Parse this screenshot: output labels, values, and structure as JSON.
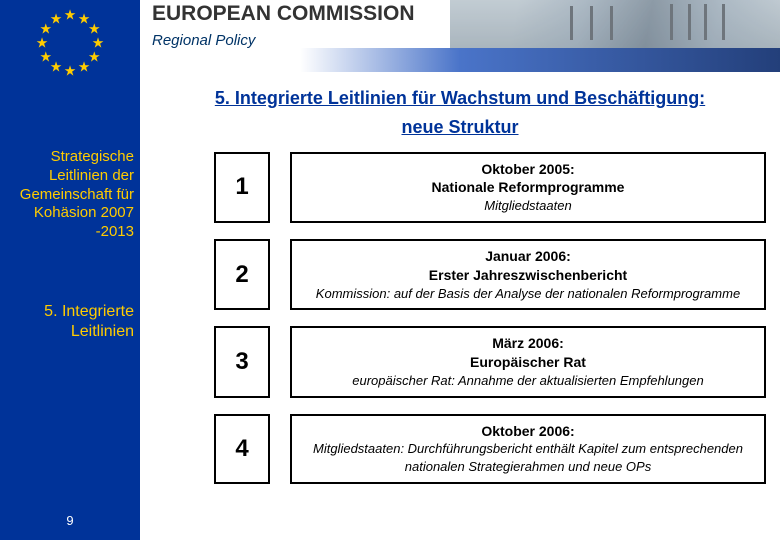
{
  "header": {
    "title": "EUROPEAN COMMISSION",
    "subtitle": "Regional Policy"
  },
  "sidebar": {
    "block1": "Strategische Leitlinien der Gemeinschaft für Kohäsion 2007 -2013",
    "block2": "5. Integrierte Leitlinien",
    "slideNumber": "9"
  },
  "main": {
    "titleLine1": "5. Integrierte Leitlinien für Wachstum und Beschäftigung:",
    "titleLine2": "neue Struktur"
  },
  "steps": [
    {
      "num": "1",
      "head": "Oktober 2005:\nNationale Reformprogramme",
      "sub": "Mitgliedstaaten"
    },
    {
      "num": "2",
      "head": "Januar 2006:\nErster Jahreszwischenbericht",
      "sub": "Kommission: auf der Basis der Analyse der nationalen Reformprogramme"
    },
    {
      "num": "3",
      "head": "März 2006:\nEuropäischer Rat",
      "sub": "europäischer Rat:  Annahme der aktualisierten Empfehlungen"
    },
    {
      "num": "4",
      "head": "Oktober 2006:",
      "sub": "Mitgliedstaaten: Durchführungsbericht enthält Kapitel zum entsprechenden nationalen Strategierahmen und neue OPs"
    }
  ],
  "colors": {
    "euBlue": "#003399",
    "euYellow": "#ffcc00",
    "boxBorder": "#000000",
    "white": "#ffffff"
  }
}
